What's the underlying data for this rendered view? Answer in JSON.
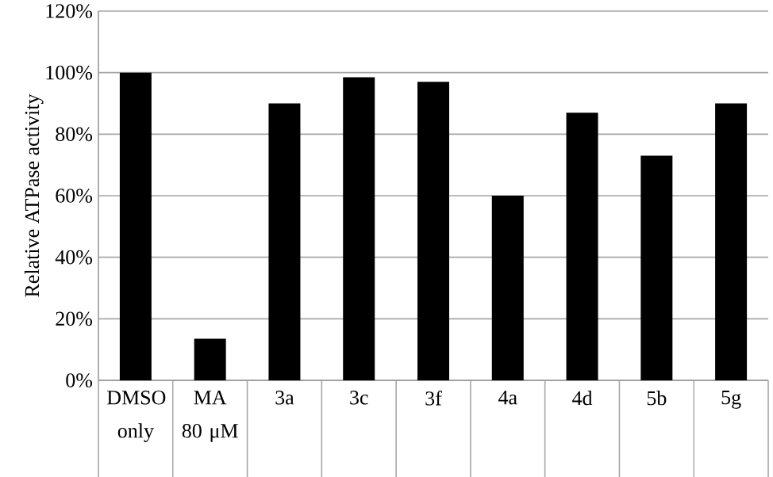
{
  "chart_data": {
    "type": "bar",
    "ylabel": "Relative ATPase activity",
    "categories": [
      "DMSO only",
      "MA 80 μM",
      "3a",
      "3c",
      "3f",
      "4a",
      "4d",
      "5b",
      "5g"
    ],
    "values": [
      100,
      13.5,
      90,
      98.5,
      97,
      60,
      87,
      73,
      90
    ],
    "color": "#000000",
    "ylim": [
      0,
      120
    ],
    "yticks": [
      {
        "value": 0,
        "label": "0%"
      },
      {
        "value": 20,
        "label": "20%"
      },
      {
        "value": 40,
        "label": "40%"
      },
      {
        "value": 60,
        "label": "60%"
      },
      {
        "value": 80,
        "label": "80%"
      },
      {
        "value": 100,
        "label": "100%"
      },
      {
        "value": 120,
        "label": "120%"
      }
    ],
    "grid": "y"
  }
}
